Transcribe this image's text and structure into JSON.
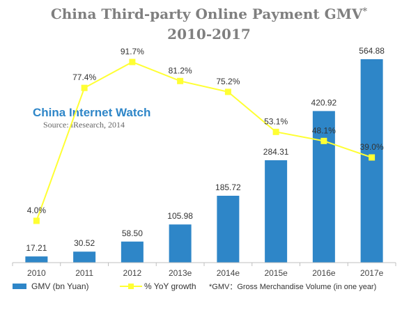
{
  "chart_data": {
    "type": "bar",
    "title": "China Third-party Online Payment GMV",
    "title_superscript": "*",
    "subtitle": "2010-2017",
    "watermark": "China Internet Watch",
    "source": "Source: iResearch, 2014",
    "categories": [
      "2010",
      "2011",
      "2012",
      "2013e",
      "2014e",
      "2015e",
      "2016e",
      "2017e"
    ],
    "series": [
      {
        "name": "GMV (bn Yuan)",
        "type": "bar",
        "color": "#2e86c8",
        "values": [
          17.21,
          30.52,
          58.5,
          105.98,
          185.72,
          284.31,
          420.92,
          564.88
        ],
        "labels": [
          "17.21",
          "30.52",
          "58.50",
          "105.98",
          "185.72",
          "284.31",
          "420.92",
          "564.88"
        ]
      },
      {
        "name": "% YoY growth",
        "type": "line",
        "color": "#ffff33",
        "values": [
          4.0,
          77.4,
          91.7,
          81.2,
          75.2,
          53.1,
          48.1,
          39.0
        ],
        "labels": [
          "4.0%",
          "77.4%",
          "91.7%",
          "81.2%",
          "75.2%",
          "53.1%",
          "48.1%",
          "39.0%"
        ]
      }
    ],
    "legend_note": "*GMV：Gross Merchandise Volume (in one year)",
    "legend_position": "bottom",
    "grid": false
  }
}
